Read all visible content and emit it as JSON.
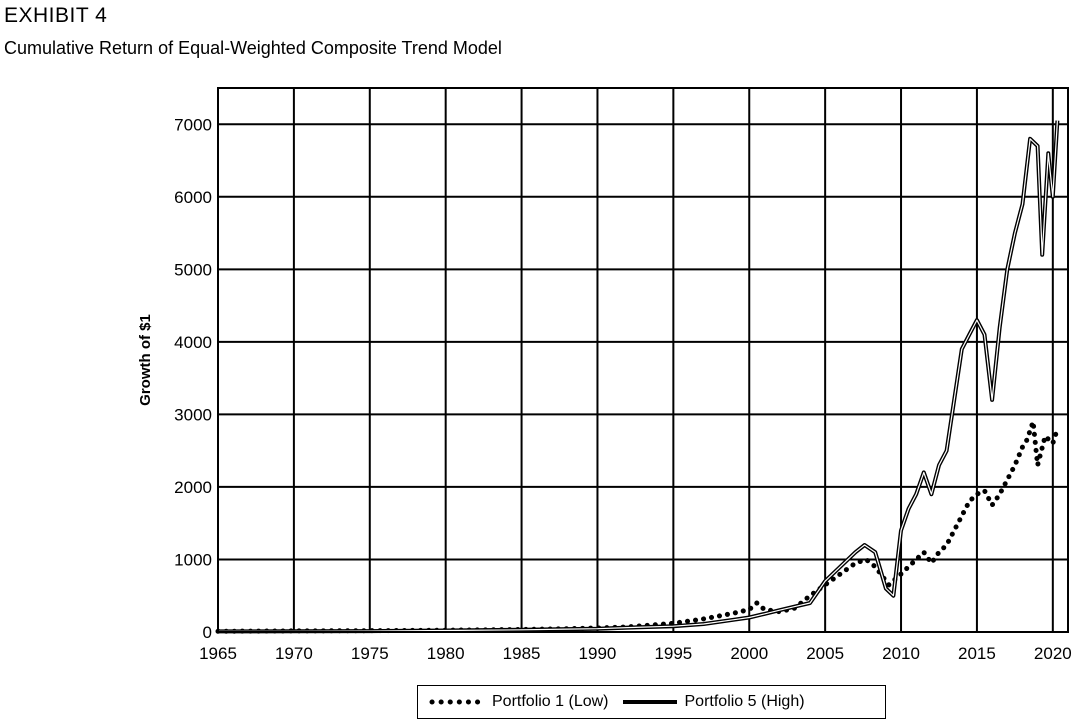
{
  "header": {
    "exhibit": "EXHIBIT 4",
    "title": "Cumulative Return of Equal-Weighted Composite Trend Model"
  },
  "chart_data": {
    "type": "line",
    "title": "Cumulative Return of Equal-Weighted Composite Trend Model",
    "xlabel": "",
    "ylabel": "Growth of $1",
    "xlim": [
      1965,
      2021
    ],
    "ylim": [
      0,
      7500
    ],
    "xticks": [
      1965,
      1970,
      1975,
      1980,
      1985,
      1990,
      1995,
      2000,
      2005,
      2010,
      2015,
      2020
    ],
    "yticks": [
      0,
      1000,
      2000,
      3000,
      4000,
      5000,
      6000,
      7000
    ],
    "grid": true,
    "legend_position": "bottom-center",
    "series": [
      {
        "name": "Portfolio 1 (Low)",
        "style": "dotted",
        "x": [
          1965,
          1970,
          1975,
          1980,
          1985,
          1988,
          1990,
          1992,
          1995,
          1997,
          1999,
          2000,
          2000.5,
          2001,
          2002,
          2003,
          2004,
          2005,
          2006,
          2007,
          2007.7,
          2008.3,
          2009.2,
          2010,
          2010.5,
          2011,
          2011.5,
          2012,
          2012.5,
          2013,
          2013.5,
          2014,
          2014.5,
          2015,
          2015.5,
          2016,
          2016.5,
          2017,
          2017.5,
          2018,
          2018.3,
          2018.7,
          2019,
          2019.5,
          2020,
          2020.3
        ],
        "y": [
          10,
          15,
          18,
          25,
          35,
          45,
          55,
          70,
          120,
          180,
          260,
          310,
          400,
          310,
          280,
          330,
          500,
          650,
          800,
          950,
          1000,
          900,
          650,
          800,
          900,
          1000,
          1100,
          950,
          1100,
          1200,
          1400,
          1600,
          1800,
          1900,
          1950,
          1750,
          1900,
          2100,
          2300,
          2550,
          2650,
          2900,
          2300,
          2700,
          2600,
          2800
        ]
      },
      {
        "name": "Portfolio 5 (High)",
        "style": "solid",
        "x": [
          1965,
          1970,
          1975,
          1980,
          1985,
          1988,
          1990,
          1992,
          1995,
          1997,
          1999,
          2000,
          2001,
          2002,
          2003,
          2004,
          2005,
          2006,
          2007,
          2007.6,
          2008.3,
          2009,
          2009.5,
          2010,
          2010.5,
          2011,
          2011.5,
          2012,
          2012.5,
          2013,
          2013.5,
          2014,
          2014.5,
          2015,
          2015.5,
          2016,
          2016.5,
          2017,
          2017.5,
          2018,
          2018.5,
          2019,
          2019.3,
          2019.7,
          2020,
          2020.3
        ],
        "y": [
          8,
          10,
          12,
          20,
          30,
          40,
          45,
          60,
          80,
          110,
          170,
          200,
          250,
          300,
          350,
          400,
          700,
          900,
          1100,
          1200,
          1100,
          600,
          500,
          1400,
          1700,
          1900,
          2200,
          1900,
          2300,
          2500,
          3200,
          3900,
          4100,
          4300,
          4100,
          3200,
          4200,
          5000,
          5500,
          5900,
          6800,
          6700,
          5200,
          6600,
          6000,
          7050
        ]
      }
    ]
  }
}
